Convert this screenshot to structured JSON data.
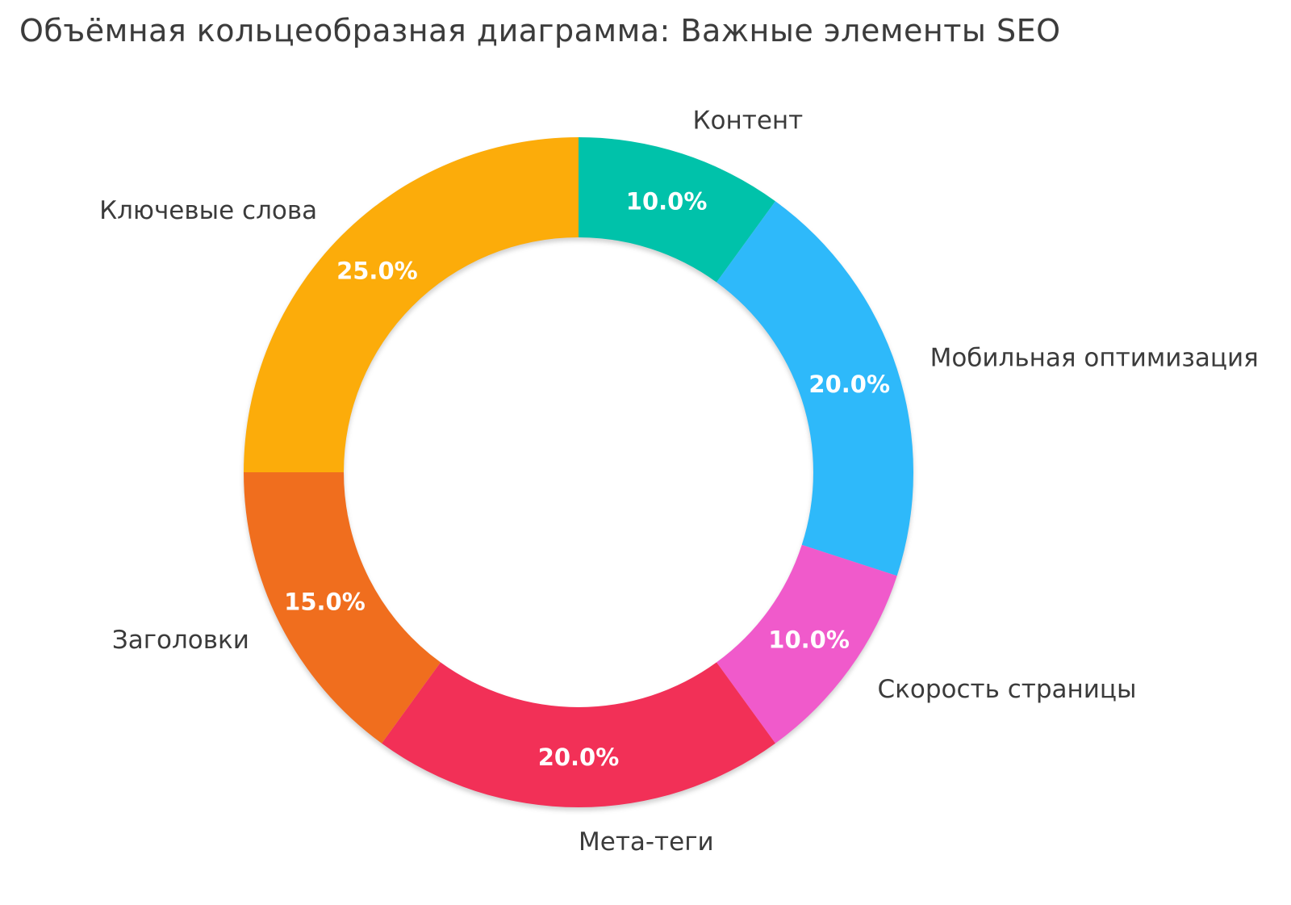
{
  "chart_data": {
    "type": "pie",
    "subtype": "donut",
    "title": "Объёмная кольцеобразная диаграмма: Важные элементы SEO",
    "hole_ratio": 0.7,
    "start_angle_deg": 0,
    "direction": "clockwise",
    "legend": "none",
    "background_color": "#ffffff",
    "title_color": "#3b3b3b",
    "category_label_color": "#3b3b3b",
    "percent_label_color": "#ffffff",
    "slices": [
      {
        "label": "Контент",
        "value": 10,
        "percent_label": "10.0%",
        "color": "#00C2AA"
      },
      {
        "label": "Мобильная оптимизация",
        "value": 20,
        "percent_label": "20.0%",
        "color": "#2EB9FA"
      },
      {
        "label": "Скорость страницы",
        "value": 10,
        "percent_label": "10.0%",
        "color": "#F05ACB"
      },
      {
        "label": "Мета-теги",
        "value": 20,
        "percent_label": "20.0%",
        "color": "#F23057"
      },
      {
        "label": "Заголовки",
        "value": 15,
        "percent_label": "15.0%",
        "color": "#F06E1E"
      },
      {
        "label": "Ключевые слова",
        "value": 25,
        "percent_label": "25.0%",
        "color": "#FCAC0A"
      }
    ]
  }
}
